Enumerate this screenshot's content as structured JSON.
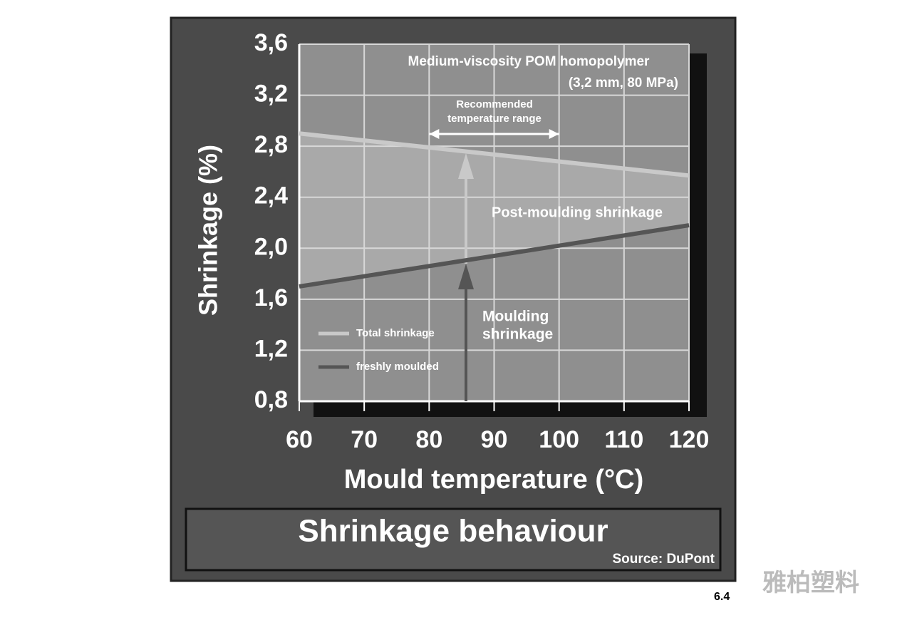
{
  "chart_data": {
    "type": "line",
    "title": "Shrinkage behaviour",
    "source": "Source: DuPont",
    "subtitle": [
      "Medium-viscosity POM homopolymer",
      "(3,2 mm, 80 MPa)"
    ],
    "xlabel": "Mould temperature (°C)",
    "ylabel": "Shrinkage (%)",
    "x": [
      60,
      120
    ],
    "series": [
      {
        "name": "Total shrinkage",
        "color": "#c9c9c9",
        "values": [
          2.9,
          2.57
        ]
      },
      {
        "name": "freshly moulded",
        "color": "#555555",
        "values": [
          1.7,
          2.18
        ]
      }
    ],
    "recommended_range": [
      80,
      100
    ],
    "annotations": {
      "range": [
        "Recommended",
        "temperature range"
      ],
      "post": "Post-moulding shrinkage",
      "moulding": [
        "Moulding",
        "shrinkage"
      ]
    },
    "xlim": [
      60,
      120
    ],
    "xticks": [
      60,
      70,
      80,
      90,
      100,
      110,
      120
    ],
    "ylim": [
      0.8,
      3.6
    ],
    "yticks": [
      {
        "value": 0.8,
        "label": "0,8"
      },
      {
        "value": 1.2,
        "label": "1,2"
      },
      {
        "value": 1.6,
        "label": "1,6"
      },
      {
        "value": 2.0,
        "label": "2,0"
      },
      {
        "value": 2.4,
        "label": "2,4"
      },
      {
        "value": 2.8,
        "label": "2,8"
      },
      {
        "value": 3.2,
        "label": "3,2"
      },
      {
        "value": 3.6,
        "label": "3,6"
      }
    ],
    "grid": true
  },
  "watermark": {
    "text": "雅柏塑料",
    "page": "6.4"
  }
}
